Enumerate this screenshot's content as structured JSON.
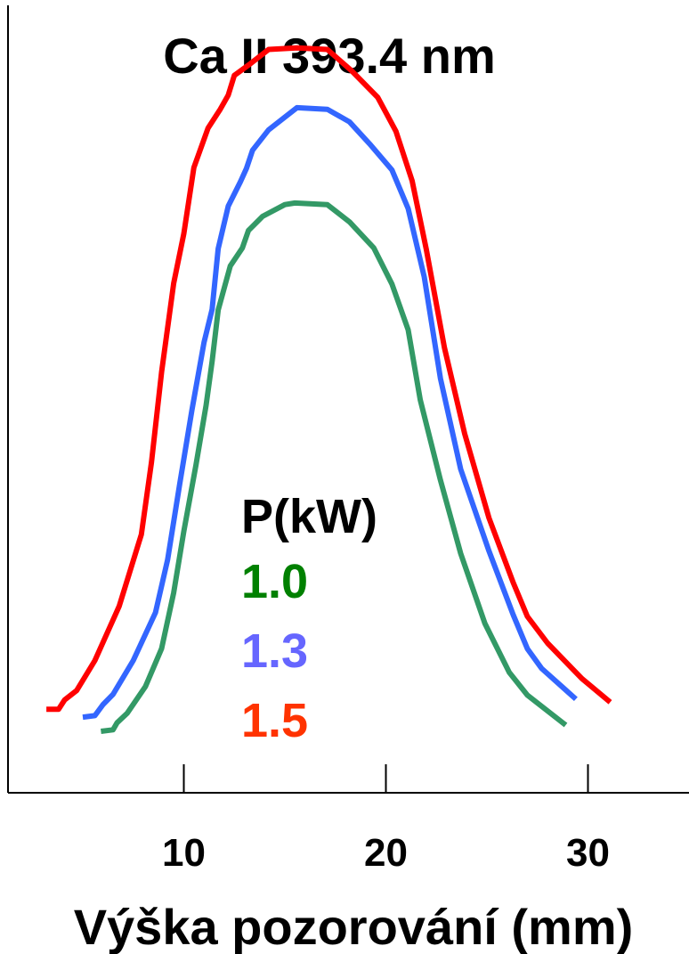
{
  "chart_data": {
    "type": "line",
    "title": "Ca II 393.4 nm",
    "xlabel": "Výška pozorování (mm)",
    "ylabel": "",
    "xlim": [
      1.3,
      35
    ],
    "ylim": [
      0,
      1
    ],
    "xticks": [
      10,
      20,
      30
    ],
    "xtick_labels": [
      "10",
      "20",
      "30"
    ],
    "yticks": [],
    "grid": false,
    "legend": {
      "title": "P(kW)",
      "placement": "center",
      "entries": [
        {
          "label": "1.0",
          "color": "#008000"
        },
        {
          "label": "1.3",
          "color": "#6666ff"
        },
        {
          "label": "1.5",
          "color": "#ff3300"
        }
      ]
    },
    "series": [
      {
        "label": "1.5",
        "color": "#ff0000",
        "points": [
          [
            3.2,
            0.106
          ],
          [
            3.8,
            0.106
          ],
          [
            4.1,
            0.118
          ],
          [
            4.7,
            0.13
          ],
          [
            5.6,
            0.168
          ],
          [
            6.8,
            0.237
          ],
          [
            7.9,
            0.328
          ],
          [
            8.4,
            0.42
          ],
          [
            8.9,
            0.534
          ],
          [
            9.5,
            0.647
          ],
          [
            10.0,
            0.71
          ],
          [
            10.5,
            0.794
          ],
          [
            11.2,
            0.844
          ],
          [
            11.8,
            0.868
          ],
          [
            12.2,
            0.886
          ],
          [
            12.5,
            0.911
          ],
          [
            13.3,
            0.926
          ],
          [
            14.2,
            0.944
          ],
          [
            15.6,
            0.946
          ],
          [
            17.1,
            0.944
          ],
          [
            18.3,
            0.917
          ],
          [
            19.6,
            0.883
          ],
          [
            20.5,
            0.84
          ],
          [
            21.3,
            0.777
          ],
          [
            22.0,
            0.69
          ],
          [
            22.9,
            0.565
          ],
          [
            23.9,
            0.456
          ],
          [
            25.1,
            0.349
          ],
          [
            26.3,
            0.267
          ],
          [
            27.0,
            0.224
          ],
          [
            28.0,
            0.19
          ],
          [
            29.7,
            0.145
          ],
          [
            31.1,
            0.115
          ]
        ]
      },
      {
        "label": "1.3",
        "color": "#3366ff",
        "points": [
          [
            5.0,
            0.096
          ],
          [
            5.6,
            0.098
          ],
          [
            6.0,
            0.112
          ],
          [
            6.5,
            0.125
          ],
          [
            7.5,
            0.168
          ],
          [
            8.6,
            0.229
          ],
          [
            9.2,
            0.296
          ],
          [
            9.8,
            0.393
          ],
          [
            10.4,
            0.486
          ],
          [
            11.0,
            0.572
          ],
          [
            11.4,
            0.614
          ],
          [
            11.7,
            0.691
          ],
          [
            12.2,
            0.745
          ],
          [
            12.8,
            0.776
          ],
          [
            13.1,
            0.793
          ],
          [
            13.4,
            0.816
          ],
          [
            14.2,
            0.842
          ],
          [
            15.0,
            0.858
          ],
          [
            15.6,
            0.87
          ],
          [
            17.1,
            0.868
          ],
          [
            18.2,
            0.852
          ],
          [
            19.2,
            0.824
          ],
          [
            20.3,
            0.791
          ],
          [
            21.1,
            0.742
          ],
          [
            21.9,
            0.655
          ],
          [
            22.7,
            0.526
          ],
          [
            23.7,
            0.411
          ],
          [
            25.1,
            0.307
          ],
          [
            26.3,
            0.226
          ],
          [
            27.0,
            0.183
          ],
          [
            27.7,
            0.158
          ],
          [
            29.4,
            0.119
          ]
        ]
      },
      {
        "label": "1.0",
        "color": "#339966",
        "points": [
          [
            5.9,
            0.078
          ],
          [
            6.5,
            0.08
          ],
          [
            6.7,
            0.089
          ],
          [
            7.2,
            0.101
          ],
          [
            8.1,
            0.135
          ],
          [
            8.9,
            0.183
          ],
          [
            9.5,
            0.254
          ],
          [
            10.0,
            0.332
          ],
          [
            10.6,
            0.416
          ],
          [
            11.1,
            0.492
          ],
          [
            11.4,
            0.548
          ],
          [
            11.7,
            0.613
          ],
          [
            12.3,
            0.669
          ],
          [
            12.9,
            0.692
          ],
          [
            13.2,
            0.714
          ],
          [
            13.9,
            0.732
          ],
          [
            15.0,
            0.747
          ],
          [
            15.5,
            0.749
          ],
          [
            17.1,
            0.747
          ],
          [
            18.2,
            0.725
          ],
          [
            19.4,
            0.692
          ],
          [
            20.3,
            0.646
          ],
          [
            21.1,
            0.588
          ],
          [
            21.7,
            0.499
          ],
          [
            22.7,
            0.397
          ],
          [
            23.7,
            0.304
          ],
          [
            24.9,
            0.215
          ],
          [
            26.1,
            0.153
          ],
          [
            27.0,
            0.124
          ],
          [
            28.9,
            0.086
          ]
        ]
      }
    ]
  }
}
